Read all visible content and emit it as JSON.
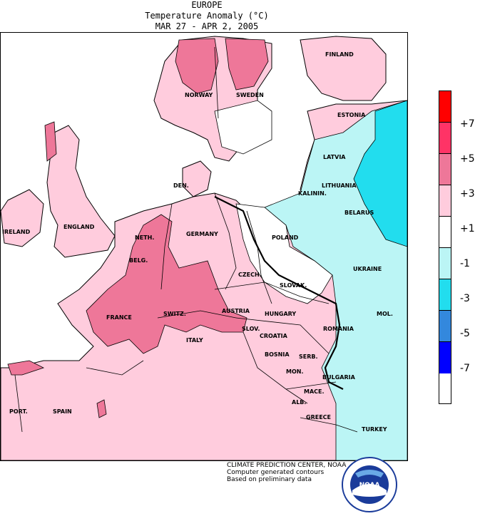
{
  "header": {
    "region": "EUROPE",
    "variable": "Temperature Anomaly (°C)",
    "period": "MAR 27  -  APR  2, 2005"
  },
  "legend": {
    "ticks": [
      "+7",
      "+5",
      "+3",
      "+1",
      "-1",
      "-3",
      "-5",
      "-7"
    ],
    "colors": [
      "#ff0000",
      "#ff3366",
      "#ee7799",
      "#ffccdd",
      "#ffffff",
      "#bbf5f5",
      "#22ddee",
      "#3388dd",
      "#0000ff"
    ]
  },
  "countries": {
    "norway": "NORWAY",
    "sweden": "SWEDEN",
    "finland": "FINLAND",
    "estonia": "ESTONIA",
    "latvia": "LATVIA",
    "lithuania": "LITHUANIA",
    "kaliningrad": "KALININ.",
    "belarus": "BELARUS",
    "denmark": "DEN.",
    "ireland": "IRELAND",
    "england": "ENGLAND",
    "netherlands": "NETH.",
    "belgium": "BELG.",
    "germany": "GERMANY",
    "poland": "POLAND",
    "czech": "CZECH.",
    "slovakia": "SLOVAK.",
    "ukraine": "UKRAINE",
    "france": "FRANCE",
    "switzerland": "SWITZ.",
    "austria": "AUSTRIA",
    "hungary": "HUNGARY",
    "moldova": "MOL.",
    "romania": "ROMANIA",
    "slovenia": "SLOV.",
    "croatia": "CROATIA",
    "italy": "ITALY",
    "bosnia": "BOSNIA",
    "serbia": "SERB.",
    "bulgaria": "BULGARIA",
    "montenegro": "MON.",
    "macedonia": "MACE.",
    "albania": "ALB.",
    "greece": "GREECE",
    "portugal": "PORT.",
    "spain": "SPAIN",
    "turkey": "TURKEY"
  },
  "credits": {
    "line1": "CLIMATE PREDICTION CENTER, NOAA",
    "line2": "Computer generated contours",
    "line3": "Based on preliminary data"
  },
  "logo": {
    "text": "NOAA",
    "ring_top": "NATIONAL OCEANIC AND ATMOSPHERIC ADMINISTRATION",
    "ring_bottom": "U.S. DEPARTMENT OF COMMERCE"
  }
}
